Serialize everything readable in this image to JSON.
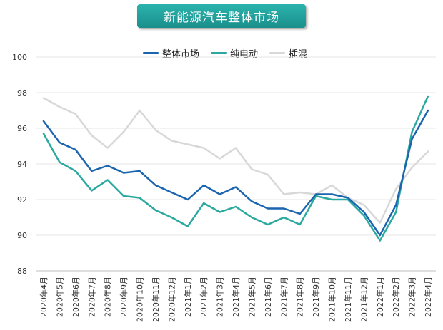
{
  "chart_data": {
    "type": "line",
    "title": "新能源汽车整体市场",
    "xlabel": "",
    "ylabel": "",
    "ylim": [
      88,
      100
    ],
    "yticks": [
      88,
      90,
      92,
      94,
      96,
      98,
      100
    ],
    "grid": true,
    "legend_position": "top",
    "categories": [
      "2020年4月",
      "2020年5月",
      "2020年6月",
      "2020年7月",
      "2020年8月",
      "2020年9月",
      "2020年10月",
      "2020年11月",
      "2020年12月",
      "2021年1月",
      "2021年2月",
      "2021年3月",
      "2021年4月",
      "2021年5月",
      "2021年6月",
      "2021年7月",
      "2021年8月",
      "2021年9月",
      "2021年10月",
      "2021年11月",
      "2021年12月",
      "2022年1月",
      "2022年2月",
      "2022年3月",
      "2022年4月"
    ],
    "series": [
      {
        "name": "整体市场",
        "color": "#1b64b0",
        "values": [
          96.4,
          95.2,
          94.8,
          93.6,
          93.9,
          93.5,
          93.6,
          92.8,
          92.4,
          92.0,
          92.8,
          92.3,
          92.7,
          91.9,
          91.5,
          91.5,
          91.2,
          92.3,
          92.3,
          92.1,
          91.3,
          90.0,
          91.7,
          95.4,
          97.0
        ]
      },
      {
        "name": "纯电动",
        "color": "#2ba89f",
        "values": [
          95.7,
          94.1,
          93.6,
          92.5,
          93.1,
          92.2,
          92.1,
          91.4,
          91.0,
          90.5,
          91.8,
          91.3,
          91.6,
          91.0,
          90.6,
          91.0,
          90.6,
          92.2,
          92.0,
          92.0,
          91.1,
          89.7,
          91.3,
          95.8,
          97.8
        ]
      },
      {
        "name": "插混",
        "color": "#d8d8d8",
        "values": [
          97.7,
          97.2,
          96.8,
          95.6,
          94.9,
          95.8,
          97.0,
          95.9,
          95.3,
          95.1,
          94.9,
          94.3,
          94.9,
          93.7,
          93.4,
          92.3,
          92.4,
          92.3,
          92.8,
          92.1,
          91.7,
          90.7,
          92.6,
          93.8,
          94.7
        ]
      }
    ]
  }
}
